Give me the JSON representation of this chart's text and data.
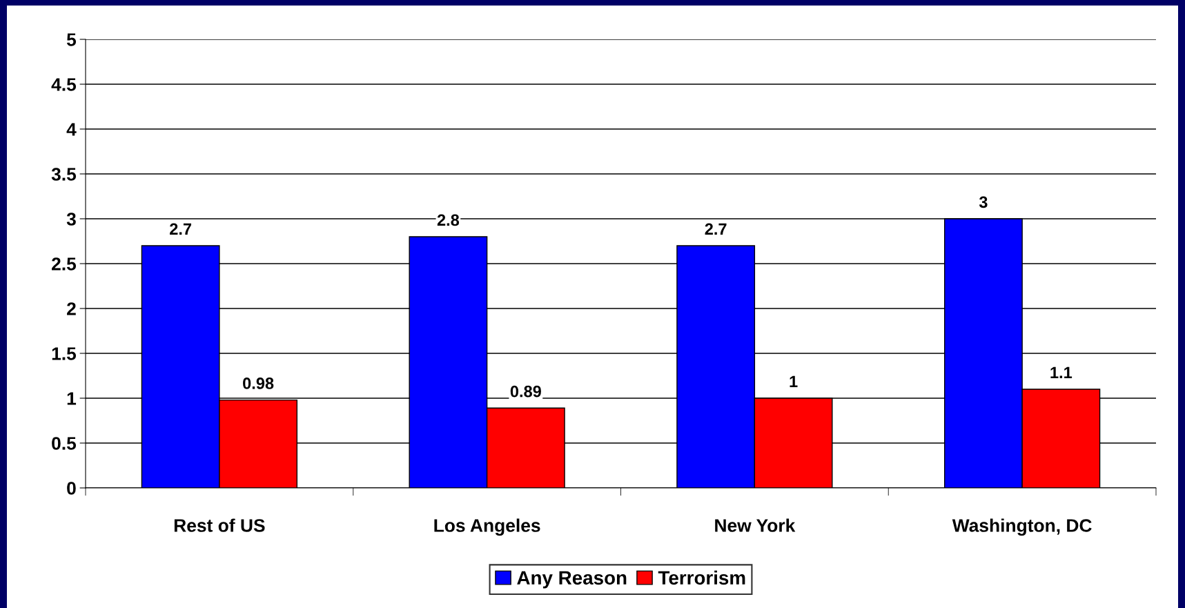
{
  "chart_data": {
    "type": "bar",
    "categories": [
      "Rest of US",
      "Los Angeles",
      "New York",
      "Washington, DC"
    ],
    "series": [
      {
        "name": "Any Reason",
        "color": "#0000ff",
        "values": [
          2.7,
          2.8,
          2.7,
          3
        ]
      },
      {
        "name": "Terrorism",
        "color": "#ff0000",
        "values": [
          0.98,
          0.89,
          1,
          1.1
        ]
      }
    ],
    "ylim": [
      0,
      5
    ],
    "yticks": [
      0,
      0.5,
      1,
      1.5,
      2,
      2.5,
      3,
      3.5,
      4,
      4.5,
      5
    ],
    "grid": "y",
    "legend": "bottom",
    "data_labels": true
  }
}
